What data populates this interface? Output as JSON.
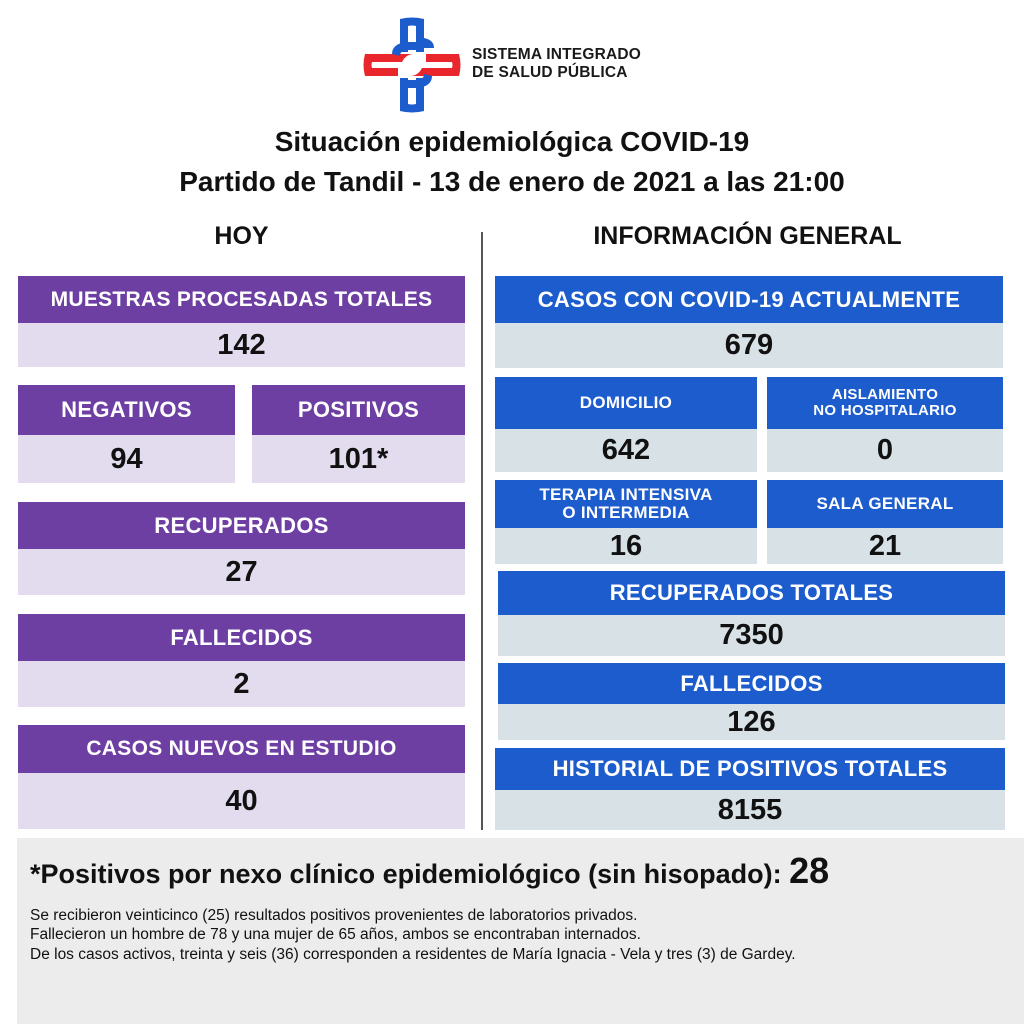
{
  "brand": {
    "logo_icon": "cross-shaped-logo-icon",
    "line1": "SISTEMA INTEGRADO",
    "line2": "DE SALUD PÚBLICA",
    "colors": {
      "red": "#e8262b",
      "blue": "#1d5ccc"
    }
  },
  "title": {
    "line1": "Situación epidemiológica COVID-19",
    "line2": "Partido de Tandil - 13 de enero de 2021 a las 21:00"
  },
  "hoy": {
    "heading": "HOY",
    "muestras": {
      "label": "MUESTRAS PROCESADAS TOTALES",
      "value": "142"
    },
    "negativos": {
      "label": "NEGATIVOS",
      "value": "94"
    },
    "positivos": {
      "label": "POSITIVOS",
      "value": "101*"
    },
    "recuperados": {
      "label": "RECUPERADOS",
      "value": "27"
    },
    "fallecidos": {
      "label": "FALLECIDOS",
      "value": "2"
    },
    "en_estudio": {
      "label": "CASOS NUEVOS EN ESTUDIO",
      "value": "40"
    }
  },
  "general": {
    "heading": "INFORMACIÓN GENERAL",
    "actuales": {
      "label": "CASOS CON COVID-19 ACTUALMENTE",
      "value": "679"
    },
    "domicilio": {
      "label": "DOMICILIO",
      "value": "642"
    },
    "aislamiento": {
      "label1": "AISLAMIENTO",
      "label2": "NO HOSPITALARIO",
      "value": "0"
    },
    "terapia": {
      "label1": "TERAPIA INTENSIVA",
      "label2": "O INTERMEDIA",
      "value": "16"
    },
    "sala": {
      "label": "SALA GENERAL",
      "value": "21"
    },
    "recuperados_totales": {
      "label": "RECUPERADOS TOTALES",
      "value": "7350"
    },
    "fallecidos": {
      "label": "FALLECIDOS",
      "value": "126"
    },
    "historial": {
      "label": "HISTORIAL DE POSITIVOS TOTALES",
      "value": "8155"
    }
  },
  "note": {
    "headline": "*Positivos por nexo clínico epidemiológico (sin hisopado):",
    "headline_value": "28",
    "lines": [
      "Se recibieron veinticinco (25) resultados positivos provenientes de laboratorios privados.",
      "Fallecieron un hombre de 78 y una mujer de 65 años, ambos se encontraban internados.",
      "De los casos activos, treinta y seis (36) corresponden a residentes de María Ignacia - Vela y tres (3) de Gardey."
    ]
  }
}
